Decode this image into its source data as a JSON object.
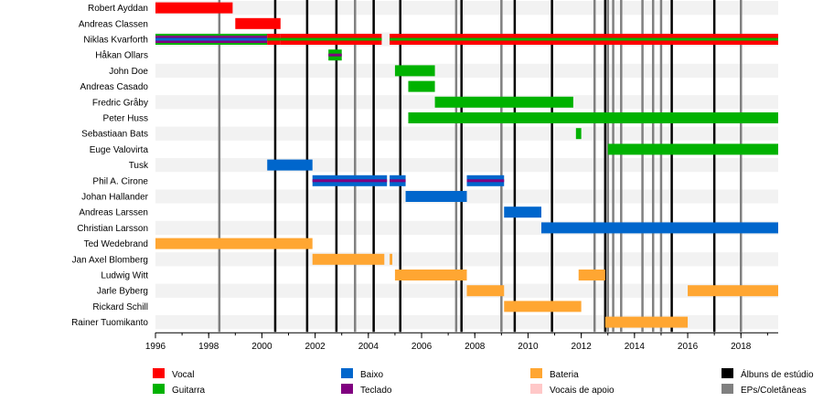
{
  "chart_data": {
    "type": "timeline",
    "xlim": [
      1996,
      2019.4
    ],
    "x_ticks": [
      "1996",
      "1998",
      "2000",
      "2002",
      "2004",
      "2006",
      "2008",
      "2010",
      "2012",
      "2014",
      "2016",
      "2018"
    ],
    "members": [
      {
        "name": "Robert Ayddan",
        "periods": [
          {
            "start": 1996,
            "end": 1998.9,
            "roles": [
              "vocal"
            ]
          }
        ]
      },
      {
        "name": "Andreas Classen",
        "periods": [
          {
            "start": 1999.0,
            "end": 2000.7,
            "roles": [
              "vocal"
            ]
          }
        ]
      },
      {
        "name": "Niklas Kvarforth",
        "periods": [
          {
            "start": 1996,
            "end": 2000.2,
            "roles": [
              "teclado",
              "baixo",
              "guitarra"
            ]
          },
          {
            "start": 2000.2,
            "end": 2000.7,
            "roles": [
              "vocal",
              "guitarra"
            ]
          },
          {
            "start": 2000.7,
            "end": 2004.5,
            "roles": [
              "vocal",
              "guitarra"
            ]
          },
          {
            "start": 2004.8,
            "end": 2019.4,
            "roles": [
              "vocal",
              "guitarra"
            ]
          }
        ]
      },
      {
        "name": "Håkan Ollars",
        "periods": [
          {
            "start": 2002.5,
            "end": 2003.0,
            "roles": [
              "guitarra",
              "teclado"
            ]
          }
        ]
      },
      {
        "name": "John Doe",
        "periods": [
          {
            "start": 2005.0,
            "end": 2006.5,
            "roles": [
              "guitarra"
            ]
          }
        ]
      },
      {
        "name": "Andreas Casado",
        "periods": [
          {
            "start": 2005.5,
            "end": 2006.5,
            "roles": [
              "guitarra"
            ]
          }
        ]
      },
      {
        "name": "Fredric Gråby",
        "periods": [
          {
            "start": 2006.5,
            "end": 2011.7,
            "roles": [
              "guitarra"
            ]
          }
        ]
      },
      {
        "name": "Peter Huss",
        "periods": [
          {
            "start": 2005.5,
            "end": 2019.4,
            "roles": [
              "guitarra"
            ]
          }
        ]
      },
      {
        "name": "Sebastiaan Bats",
        "periods": [
          {
            "start": 2011.8,
            "end": 2012.0,
            "roles": [
              "guitarra"
            ]
          }
        ]
      },
      {
        "name": "Euge Valovirta",
        "periods": [
          {
            "start": 2013.0,
            "end": 2019.4,
            "roles": [
              "guitarra"
            ]
          }
        ]
      },
      {
        "name": "Tusk",
        "periods": [
          {
            "start": 2000.2,
            "end": 2001.9,
            "roles": [
              "baixo"
            ]
          }
        ]
      },
      {
        "name": "Phil A. Cirone",
        "periods": [
          {
            "start": 2001.9,
            "end": 2004.7,
            "roles": [
              "baixo",
              "teclado"
            ]
          },
          {
            "start": 2004.8,
            "end": 2005.4,
            "roles": [
              "baixo",
              "teclado"
            ]
          },
          {
            "start": 2007.7,
            "end": 2009.1,
            "roles": [
              "baixo",
              "teclado"
            ]
          }
        ]
      },
      {
        "name": "Johan Hallander",
        "periods": [
          {
            "start": 2005.4,
            "end": 2007.7,
            "roles": [
              "baixo"
            ]
          }
        ]
      },
      {
        "name": "Andreas Larssen",
        "periods": [
          {
            "start": 2009.1,
            "end": 2010.5,
            "roles": [
              "baixo"
            ]
          }
        ]
      },
      {
        "name": "Christian Larsson",
        "periods": [
          {
            "start": 2010.5,
            "end": 2019.4,
            "roles": [
              "baixo"
            ]
          }
        ]
      },
      {
        "name": "Ted Wedebrand",
        "periods": [
          {
            "start": 1996,
            "end": 2001.9,
            "roles": [
              "bateria"
            ]
          }
        ]
      },
      {
        "name": "Jan Axel Blomberg",
        "periods": [
          {
            "start": 2001.9,
            "end": 2004.6,
            "roles": [
              "bateria"
            ]
          },
          {
            "start": 2004.8,
            "end": 2004.9,
            "roles": [
              "bateria"
            ]
          }
        ]
      },
      {
        "name": "Ludwig Witt",
        "periods": [
          {
            "start": 2005.0,
            "end": 2007.7,
            "roles": [
              "bateria"
            ]
          },
          {
            "start": 2011.9,
            "end": 2012.9,
            "roles": [
              "bateria"
            ]
          }
        ]
      },
      {
        "name": "Jarle Byberg",
        "periods": [
          {
            "start": 2007.7,
            "end": 2009.1,
            "roles": [
              "bateria"
            ]
          },
          {
            "start": 2016.0,
            "end": 2019.4,
            "roles": [
              "bateria"
            ]
          }
        ]
      },
      {
        "name": "Rickard Schill",
        "periods": [
          {
            "start": 2009.1,
            "end": 2012.0,
            "roles": [
              "bateria"
            ]
          }
        ]
      },
      {
        "name": "Rainer Tuomikanto",
        "periods": [
          {
            "start": 2012.9,
            "end": 2016.0,
            "roles": [
              "bateria"
            ]
          }
        ]
      }
    ],
    "studio_albums": [
      2000.5,
      2001.7,
      2002.8,
      2004.2,
      2005.2,
      2007.5,
      2009.5,
      2010.9,
      2012.9,
      2015.4,
      2017.0
    ],
    "ep_compilations": [
      1998.4,
      2003.5,
      2007.3,
      2009.0,
      2012.5,
      2013.0,
      2013.2,
      2013.5,
      2014.3,
      2014.7,
      2015.0,
      2018.0
    ],
    "legend": [
      {
        "key": "vocal",
        "label": "Vocal",
        "color": "#ff0000"
      },
      {
        "key": "guitarra",
        "label": "Guitarra",
        "color": "#00b200"
      },
      {
        "key": "baixo",
        "label": "Baixo",
        "color": "#0066cc"
      },
      {
        "key": "teclado",
        "label": "Teclado",
        "color": "#800080"
      },
      {
        "key": "bateria",
        "label": "Bateria",
        "color": "#ffa632"
      },
      {
        "key": "vocais_apoio",
        "label": "Vocais de apoio",
        "color": "#ffc8c8"
      },
      {
        "key": "albuns",
        "label": "Álbuns de estúdio",
        "color": "#000000"
      },
      {
        "key": "eps",
        "label": "EPs/Coletâneas",
        "color": "#808080"
      }
    ],
    "grid": true
  }
}
